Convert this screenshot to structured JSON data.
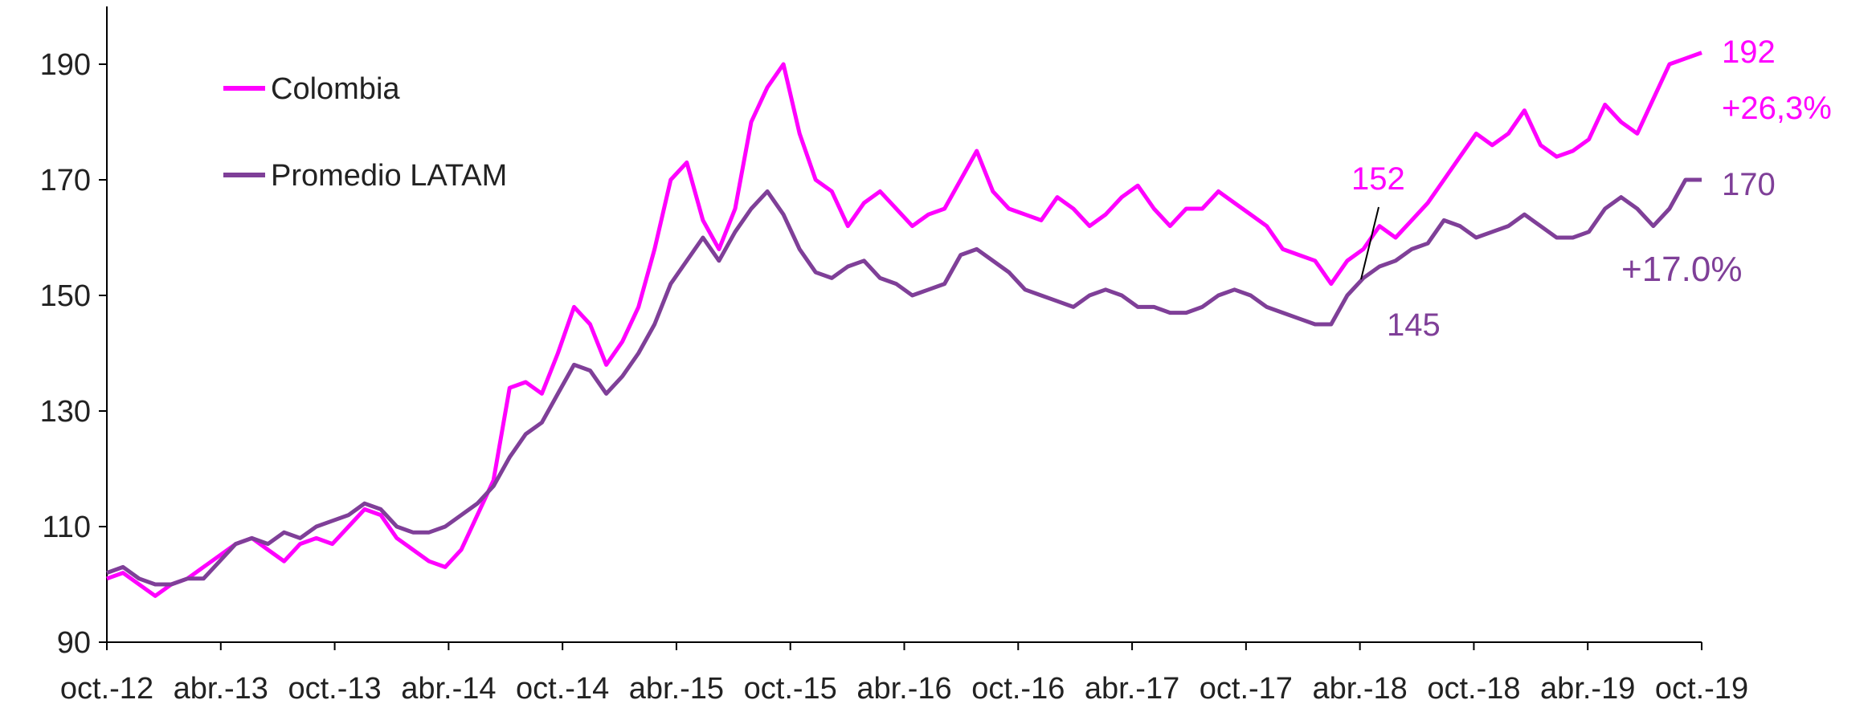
{
  "chart_data": {
    "type": "line",
    "title": "",
    "xlabel": "",
    "ylabel": "",
    "ylim": [
      90,
      200
    ],
    "yticks": [
      90,
      110,
      130,
      150,
      170,
      190
    ],
    "x_ticks": [
      "oct.-12",
      "abr.-13",
      "oct.-13",
      "abr.-14",
      "oct.-14",
      "abr.-15",
      "oct.-15",
      "abr.-16",
      "oct.-16",
      "abr.-17",
      "oct.-17",
      "abr.-18",
      "oct.-18",
      "abr.-19",
      "oct.-19"
    ],
    "grid": false,
    "legend_position": "top-left",
    "series": [
      {
        "name": "Colombia",
        "color": "#ff00ff",
        "values": [
          101,
          102,
          100,
          98,
          100,
          101,
          103,
          105,
          107,
          108,
          106,
          104,
          107,
          108,
          107,
          110,
          113,
          112,
          108,
          106,
          104,
          103,
          106,
          112,
          118,
          134,
          135,
          133,
          140,
          148,
          145,
          138,
          142,
          148,
          158,
          170,
          173,
          163,
          158,
          165,
          180,
          186,
          190,
          178,
          170,
          168,
          162,
          166,
          168,
          165,
          162,
          164,
          165,
          170,
          175,
          168,
          165,
          164,
          163,
          167,
          165,
          162,
          164,
          167,
          169,
          165,
          162,
          165,
          165,
          168,
          166,
          164,
          162,
          158,
          157,
          156,
          152,
          156,
          158,
          162,
          160,
          163,
          166,
          170,
          174,
          178,
          176,
          178,
          182,
          176,
          174,
          175,
          177,
          183,
          180,
          178,
          184,
          190,
          191,
          192
        ]
      },
      {
        "name": "Promedio LATAM",
        "color": "#7f3f98",
        "values": [
          102,
          103,
          101,
          100,
          100,
          101,
          101,
          104,
          107,
          108,
          107,
          109,
          108,
          110,
          111,
          112,
          114,
          113,
          110,
          109,
          109,
          110,
          112,
          114,
          117,
          122,
          126,
          128,
          133,
          138,
          137,
          133,
          136,
          140,
          145,
          152,
          156,
          160,
          156,
          161,
          165,
          168,
          164,
          158,
          154,
          153,
          155,
          156,
          153,
          152,
          150,
          151,
          152,
          157,
          158,
          156,
          154,
          151,
          150,
          149,
          148,
          150,
          151,
          150,
          148,
          148,
          147,
          147,
          148,
          150,
          151,
          150,
          148,
          147,
          146,
          145,
          145,
          150,
          153,
          155,
          156,
          158,
          159,
          163,
          162,
          160,
          161,
          162,
          164,
          162,
          160,
          160,
          161,
          165,
          167,
          165,
          162,
          165,
          170,
          170
        ]
      }
    ],
    "annotations": [
      {
        "text": "192",
        "color": "#ff00ff"
      },
      {
        "text": "+26,3%",
        "color": "#ff00ff"
      },
      {
        "text": "170",
        "color": "#7f3f98"
      },
      {
        "text": "+17.0%",
        "color": "#7f3f98"
      },
      {
        "text": "152",
        "color": "#ff00ff"
      },
      {
        "text": "145",
        "color": "#7f3f98"
      }
    ]
  }
}
